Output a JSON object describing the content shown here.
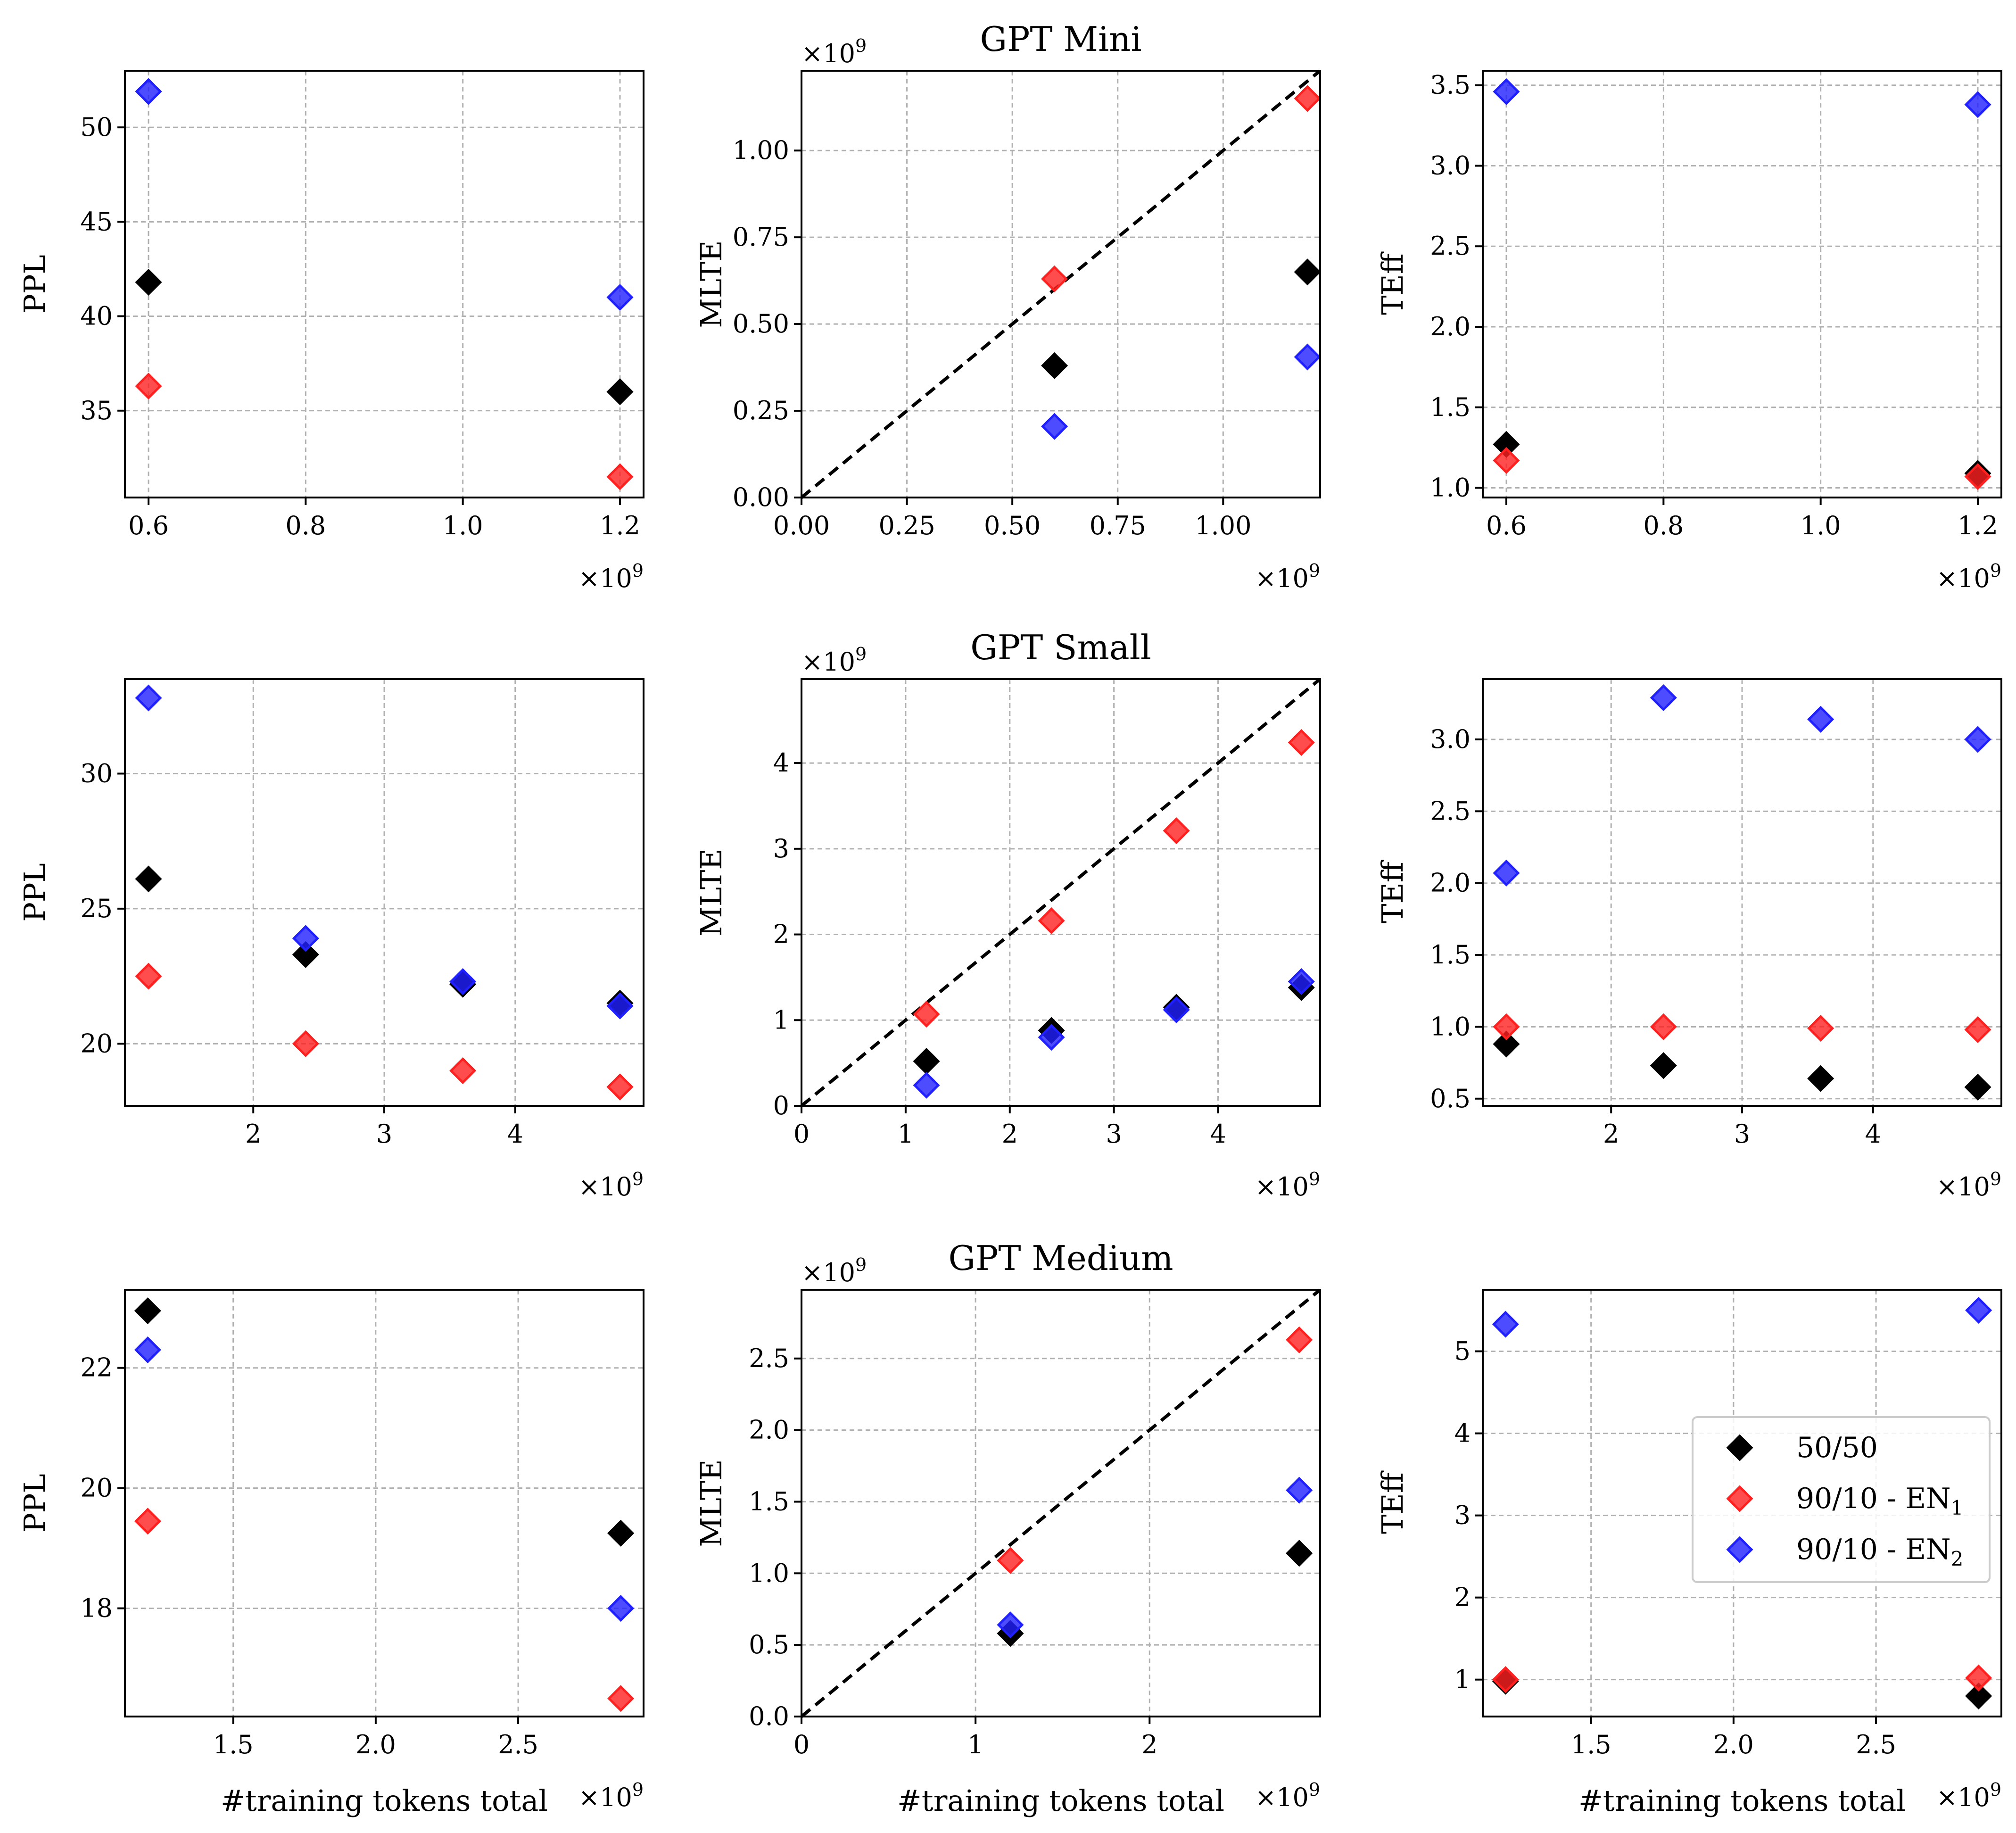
{
  "colors": {
    "series_50_50": "#000000",
    "series_en1": "#ff2020",
    "series_en2": "#2020ff"
  },
  "legend": {
    "items": [
      {
        "label": "50/50",
        "color": "#000000"
      },
      {
        "label": "90/10 - EN",
        "sub": "1",
        "color": "#ff2020"
      },
      {
        "label": "90/10 - EN",
        "sub": "2",
        "color": "#2020ff"
      }
    ],
    "location": "center-right of bottom-right panel"
  },
  "chart_data": [
    {
      "type": "scatter",
      "id": "mini_ppl",
      "title": "",
      "xlabel": "",
      "ylabel": "PPL",
      "x_multiplier": "×10^9",
      "y_multiplier": "",
      "xlim": [
        0.57,
        1.23
      ],
      "ylim": [
        30.4,
        53.0
      ],
      "xticks": [
        0.6,
        0.8,
        1.0,
        1.2
      ],
      "xtick_labels": [
        "0.6",
        "0.8",
        "1.0",
        "1.2"
      ],
      "yticks": [
        35,
        40,
        45,
        50
      ],
      "ytick_labels": [
        "35",
        "40",
        "45",
        "50"
      ],
      "diagonal": false,
      "series": [
        {
          "name": "50/50",
          "x": [
            0.6,
            1.2
          ],
          "y": [
            41.8,
            36.0
          ]
        },
        {
          "name": "90/10 - EN1",
          "x": [
            0.6,
            1.2
          ],
          "y": [
            36.3,
            31.5
          ]
        },
        {
          "name": "90/10 - EN2",
          "x": [
            0.6,
            1.2
          ],
          "y": [
            51.9,
            41.0
          ]
        }
      ]
    },
    {
      "type": "scatter",
      "id": "mini_mlte",
      "title": "GPT Mini",
      "xlabel": "",
      "ylabel": "MLTE",
      "x_multiplier": "×10^9",
      "y_multiplier": "×10^9",
      "xlim": [
        0.0,
        1.23
      ],
      "ylim": [
        0.0,
        1.23
      ],
      "xticks": [
        0.0,
        0.25,
        0.5,
        0.75,
        1.0
      ],
      "xtick_labels": [
        "0.00",
        "0.25",
        "0.50",
        "0.75",
        "1.00"
      ],
      "yticks": [
        0.0,
        0.25,
        0.5,
        0.75,
        1.0
      ],
      "ytick_labels": [
        "0.00",
        "0.25",
        "0.50",
        "0.75",
        "1.00"
      ],
      "diagonal": true,
      "series": [
        {
          "name": "50/50",
          "x": [
            0.6,
            1.2
          ],
          "y": [
            0.38,
            0.65
          ]
        },
        {
          "name": "90/10 - EN1",
          "x": [
            0.6,
            1.2
          ],
          "y": [
            0.63,
            1.15
          ]
        },
        {
          "name": "90/10 - EN2",
          "x": [
            0.6,
            1.2
          ],
          "y": [
            0.205,
            0.405
          ]
        }
      ]
    },
    {
      "type": "scatter",
      "id": "mini_teff",
      "title": "",
      "xlabel": "",
      "ylabel": "TEff",
      "x_multiplier": "×10^9",
      "y_multiplier": "",
      "xlim": [
        0.57,
        1.23
      ],
      "ylim": [
        0.94,
        3.59
      ],
      "xticks": [
        0.6,
        0.8,
        1.0,
        1.2
      ],
      "xtick_labels": [
        "0.6",
        "0.8",
        "1.0",
        "1.2"
      ],
      "yticks": [
        1.0,
        1.5,
        2.0,
        2.5,
        3.0,
        3.5
      ],
      "ytick_labels": [
        "1.0",
        "1.5",
        "2.0",
        "2.5",
        "3.0",
        "3.5"
      ],
      "diagonal": false,
      "series": [
        {
          "name": "50/50",
          "x": [
            0.6,
            1.2
          ],
          "y": [
            1.27,
            1.09
          ]
        },
        {
          "name": "90/10 - EN1",
          "x": [
            0.6,
            1.2
          ],
          "y": [
            1.17,
            1.07
          ]
        },
        {
          "name": "90/10 - EN2",
          "x": [
            0.6,
            1.2
          ],
          "y": [
            3.46,
            3.38
          ]
        }
      ]
    },
    {
      "type": "scatter",
      "id": "small_ppl",
      "title": "",
      "xlabel": "",
      "ylabel": "PPL",
      "x_multiplier": "×10^9",
      "y_multiplier": "",
      "xlim": [
        1.02,
        4.98
      ],
      "ylim": [
        17.7,
        33.5
      ],
      "xticks": [
        2,
        3,
        4
      ],
      "xtick_labels": [
        "2",
        "3",
        "4"
      ],
      "yticks": [
        20,
        25,
        30
      ],
      "ytick_labels": [
        "20",
        "25",
        "30"
      ],
      "diagonal": false,
      "series": [
        {
          "name": "50/50",
          "x": [
            1.2,
            2.4,
            3.6,
            4.8
          ],
          "y": [
            26.1,
            23.3,
            22.2,
            21.5
          ]
        },
        {
          "name": "90/10 - EN1",
          "x": [
            1.2,
            2.4,
            3.6,
            4.8
          ],
          "y": [
            22.5,
            20.0,
            19.0,
            18.4
          ]
        },
        {
          "name": "90/10 - EN2",
          "x": [
            1.2,
            2.4,
            3.6,
            4.8
          ],
          "y": [
            32.8,
            23.9,
            22.3,
            21.4
          ]
        }
      ]
    },
    {
      "type": "scatter",
      "id": "small_mlte",
      "title": "GPT Small",
      "xlabel": "",
      "ylabel": "MLTE",
      "x_multiplier": "×10^9",
      "y_multiplier": "×10^9",
      "xlim": [
        0,
        4.98
      ],
      "ylim": [
        0,
        4.98
      ],
      "xticks": [
        0,
        1,
        2,
        3,
        4
      ],
      "xtick_labels": [
        "0",
        "1",
        "2",
        "3",
        "4"
      ],
      "yticks": [
        0,
        1,
        2,
        3,
        4
      ],
      "ytick_labels": [
        "0",
        "1",
        "2",
        "3",
        "4"
      ],
      "diagonal": true,
      "series": [
        {
          "name": "50/50",
          "x": [
            1.2,
            2.4,
            3.6,
            4.8
          ],
          "y": [
            0.52,
            0.88,
            1.15,
            1.38
          ]
        },
        {
          "name": "90/10 - EN1",
          "x": [
            1.2,
            2.4,
            3.6,
            4.8
          ],
          "y": [
            1.07,
            2.16,
            3.21,
            4.24
          ]
        },
        {
          "name": "90/10 - EN2",
          "x": [
            1.2,
            2.4,
            3.6,
            4.8
          ],
          "y": [
            0.24,
            0.8,
            1.12,
            1.45
          ]
        }
      ]
    },
    {
      "type": "scatter",
      "id": "small_teff",
      "title": "",
      "xlabel": "",
      "ylabel": "TEff",
      "x_multiplier": "×10^9",
      "y_multiplier": "",
      "xlim": [
        1.02,
        4.98
      ],
      "ylim": [
        0.45,
        3.42
      ],
      "xticks": [
        2,
        3,
        4
      ],
      "xtick_labels": [
        "2",
        "3",
        "4"
      ],
      "yticks": [
        0.5,
        1.0,
        1.5,
        2.0,
        2.5,
        3.0
      ],
      "ytick_labels": [
        "0.5",
        "1.0",
        "1.5",
        "2.0",
        "2.5",
        "3.0"
      ],
      "diagonal": false,
      "series": [
        {
          "name": "50/50",
          "x": [
            1.2,
            2.4,
            3.6,
            4.8
          ],
          "y": [
            0.88,
            0.73,
            0.64,
            0.58
          ]
        },
        {
          "name": "90/10 - EN1",
          "x": [
            1.2,
            2.4,
            3.6,
            4.8
          ],
          "y": [
            1.0,
            1.0,
            0.99,
            0.98
          ]
        },
        {
          "name": "90/10 - EN2",
          "x": [
            1.2,
            2.4,
            3.6,
            4.8
          ],
          "y": [
            2.07,
            3.29,
            3.14,
            3.0
          ]
        }
      ]
    },
    {
      "type": "scatter",
      "id": "medium_ppl",
      "title": "",
      "xlabel": "#training tokens total",
      "ylabel": "PPL",
      "x_multiplier": "×10^9",
      "y_multiplier": "",
      "xlim": [
        1.12,
        2.94
      ],
      "ylim": [
        16.2,
        23.3
      ],
      "xticks": [
        1.5,
        2.0,
        2.5
      ],
      "xtick_labels": [
        "1.5",
        "2.0",
        "2.5"
      ],
      "yticks": [
        18,
        20,
        22
      ],
      "ytick_labels": [
        "18",
        "20",
        "22"
      ],
      "diagonal": false,
      "series": [
        {
          "name": "50/50",
          "x": [
            1.2,
            2.86
          ],
          "y": [
            22.95,
            19.25
          ]
        },
        {
          "name": "90/10 - EN1",
          "x": [
            1.2,
            2.86
          ],
          "y": [
            19.45,
            16.5
          ]
        },
        {
          "name": "90/10 - EN2",
          "x": [
            1.2,
            2.86
          ],
          "y": [
            22.3,
            18.0
          ]
        }
      ]
    },
    {
      "type": "scatter",
      "id": "medium_mlte",
      "title": "GPT Medium",
      "xlabel": "#training tokens total",
      "ylabel": "MLTE",
      "x_multiplier": "×10^9",
      "y_multiplier": "×10^9",
      "xlim": [
        0,
        2.98
      ],
      "ylim": [
        0,
        2.98
      ],
      "xticks": [
        0,
        1,
        2
      ],
      "xtick_labels": [
        "0",
        "1",
        "2"
      ],
      "yticks": [
        0.0,
        0.5,
        1.0,
        1.5,
        2.0,
        2.5
      ],
      "ytick_labels": [
        "0.0",
        "0.5",
        "1.0",
        "1.5",
        "2.0",
        "2.5"
      ],
      "diagonal": true,
      "series": [
        {
          "name": "50/50",
          "x": [
            1.2,
            2.86
          ],
          "y": [
            0.58,
            1.14
          ]
        },
        {
          "name": "90/10 - EN1",
          "x": [
            1.2,
            2.86
          ],
          "y": [
            1.09,
            2.63
          ]
        },
        {
          "name": "90/10 - EN2",
          "x": [
            1.2,
            2.86
          ],
          "y": [
            0.64,
            1.58
          ]
        }
      ]
    },
    {
      "type": "scatter",
      "id": "medium_teff",
      "title": "",
      "xlabel": "#training tokens total",
      "ylabel": "TEff",
      "x_multiplier": "×10^9",
      "y_multiplier": "",
      "xlim": [
        1.12,
        2.94
      ],
      "ylim": [
        0.55,
        5.75
      ],
      "xticks": [
        1.5,
        2.0,
        2.5
      ],
      "xtick_labels": [
        "1.5",
        "2.0",
        "2.5"
      ],
      "yticks": [
        1,
        2,
        3,
        4,
        5
      ],
      "ytick_labels": [
        "1",
        "2",
        "3",
        "4",
        "5"
      ],
      "diagonal": false,
      "series": [
        {
          "name": "50/50",
          "x": [
            1.2,
            2.86
          ],
          "y": [
            0.98,
            0.8
          ]
        },
        {
          "name": "90/10 - EN1",
          "x": [
            1.2,
            2.86
          ],
          "y": [
            1.0,
            1.02
          ]
        },
        {
          "name": "90/10 - EN2",
          "x": [
            1.2,
            2.86
          ],
          "y": [
            5.33,
            5.5
          ]
        }
      ]
    }
  ]
}
